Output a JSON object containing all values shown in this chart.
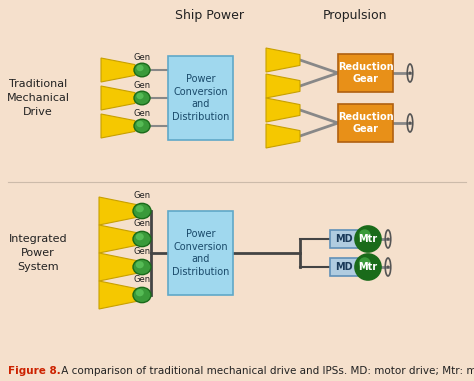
{
  "background_color": "#f5e0cc",
  "title_color": "#cc2200",
  "yellow_color": "#f5c800",
  "yellow_edge": "#c8a000",
  "green_dark": "#1a6b1a",
  "green_mid": "#3a9a3a",
  "green_light": "#55bb55",
  "blue_box": "#a0d8ee",
  "blue_box_edge": "#60a8c8",
  "orange_box": "#e89018",
  "orange_box_edge": "#b06010",
  "md_box": "#b0cce0",
  "md_box_edge": "#6090b8",
  "line_color": "#444444",
  "text_color": "#222222",
  "top_label": "Ship Power",
  "top_label2": "Propulsion",
  "left_label1": "Traditional\nMechanical\nDrive",
  "left_label2": "Integrated\nPower\nSystem",
  "box1_text": "Power\nConversion\nand\nDistribution",
  "box2_text": "Power\nConversion\nand\nDistribution",
  "gear_text": "Reduction\nGear",
  "md_text": "MD",
  "mtr_text": "Mtr",
  "gen_text": "Gen",
  "caption_bold": "Figure 8.",
  "caption_rest": " A comparison of traditional mechanical drive and IPSs. MD: motor drive; Mtr: motor;"
}
